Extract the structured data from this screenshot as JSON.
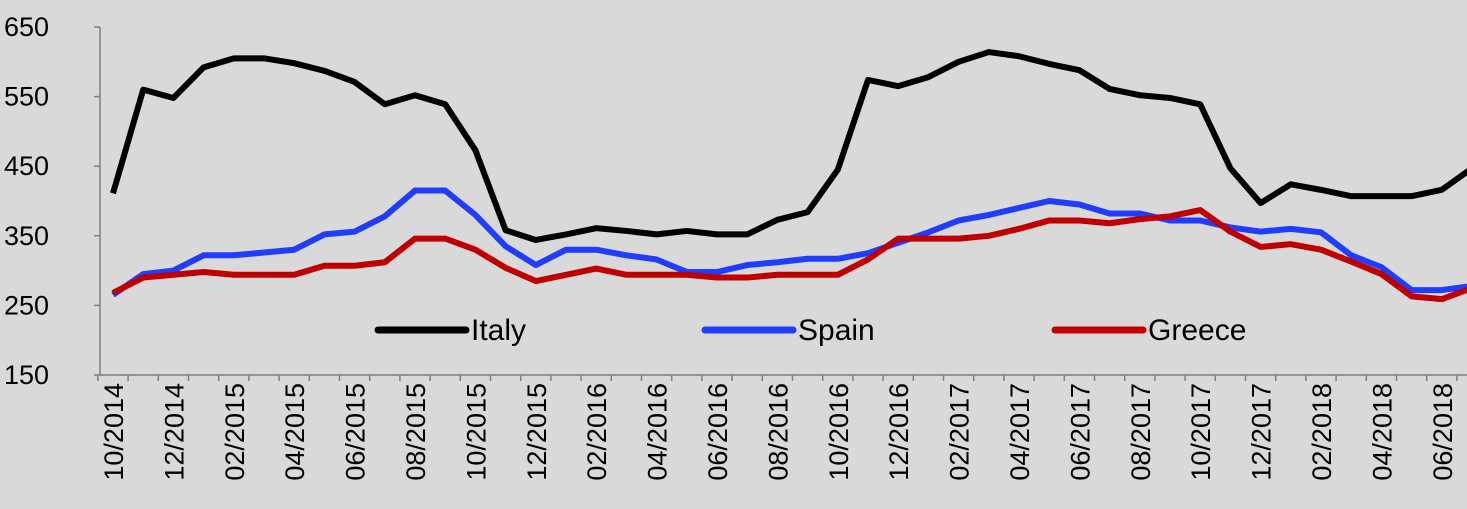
{
  "chart_data": {
    "type": "line",
    "categories": [
      "10/2014",
      null,
      "12/2014",
      null,
      "02/2015",
      null,
      "04/2015",
      null,
      "06/2015",
      null,
      "08/2015",
      null,
      "10/2015",
      null,
      "12/2015",
      null,
      "02/2016",
      null,
      "04/2016",
      null,
      "06/2016",
      null,
      "08/2016",
      null,
      "10/2016",
      null,
      "12/2016",
      null,
      "02/2017",
      null,
      "04/2017",
      null,
      "06/2017",
      null,
      "08/2017",
      null,
      "10/2017",
      null,
      "12/2017",
      null,
      "02/2018",
      null,
      "04/2018",
      null,
      "06/2018",
      null
    ],
    "series": [
      {
        "name": "Italy",
        "color": "#000000",
        "values": [
          411,
          560,
          548,
          592,
          605,
          605,
          598,
          587,
          571,
          539,
          552,
          539,
          473,
          358,
          344,
          352,
          361,
          357,
          352,
          357,
          352,
          352,
          373,
          384,
          445,
          574,
          565,
          578,
          600,
          614,
          608,
          597,
          588,
          561,
          552,
          548,
          539,
          447,
          397,
          424,
          416,
          407,
          407,
          407,
          416,
          447
        ]
      },
      {
        "name": "Spain",
        "color": "#1f3cff",
        "values": [
          265,
          295,
          300,
          322,
          322,
          326,
          330,
          352,
          356,
          378,
          415,
          415,
          380,
          335,
          308,
          330,
          330,
          322,
          316,
          298,
          298,
          308,
          312,
          317,
          317,
          325,
          340,
          355,
          372,
          380,
          390,
          400,
          395,
          382,
          382,
          372,
          372,
          362,
          356,
          360,
          355,
          322,
          305,
          272,
          272,
          278
        ]
      },
      {
        "name": "Greece",
        "color": "#c00000",
        "values": [
          268,
          290,
          294,
          298,
          294,
          294,
          294,
          307,
          307,
          312,
          346,
          346,
          330,
          304,
          285,
          294,
          303,
          294,
          294,
          294,
          290,
          290,
          294,
          294,
          294,
          316,
          346,
          346,
          346,
          350,
          360,
          372,
          372,
          368,
          374,
          378,
          387,
          356,
          334,
          338,
          330,
          313,
          295,
          263,
          259,
          275
        ]
      }
    ],
    "ylim": [
      150,
      650
    ],
    "yticks": [
      150,
      250,
      350,
      450,
      550,
      650
    ],
    "legend": "bottom"
  }
}
